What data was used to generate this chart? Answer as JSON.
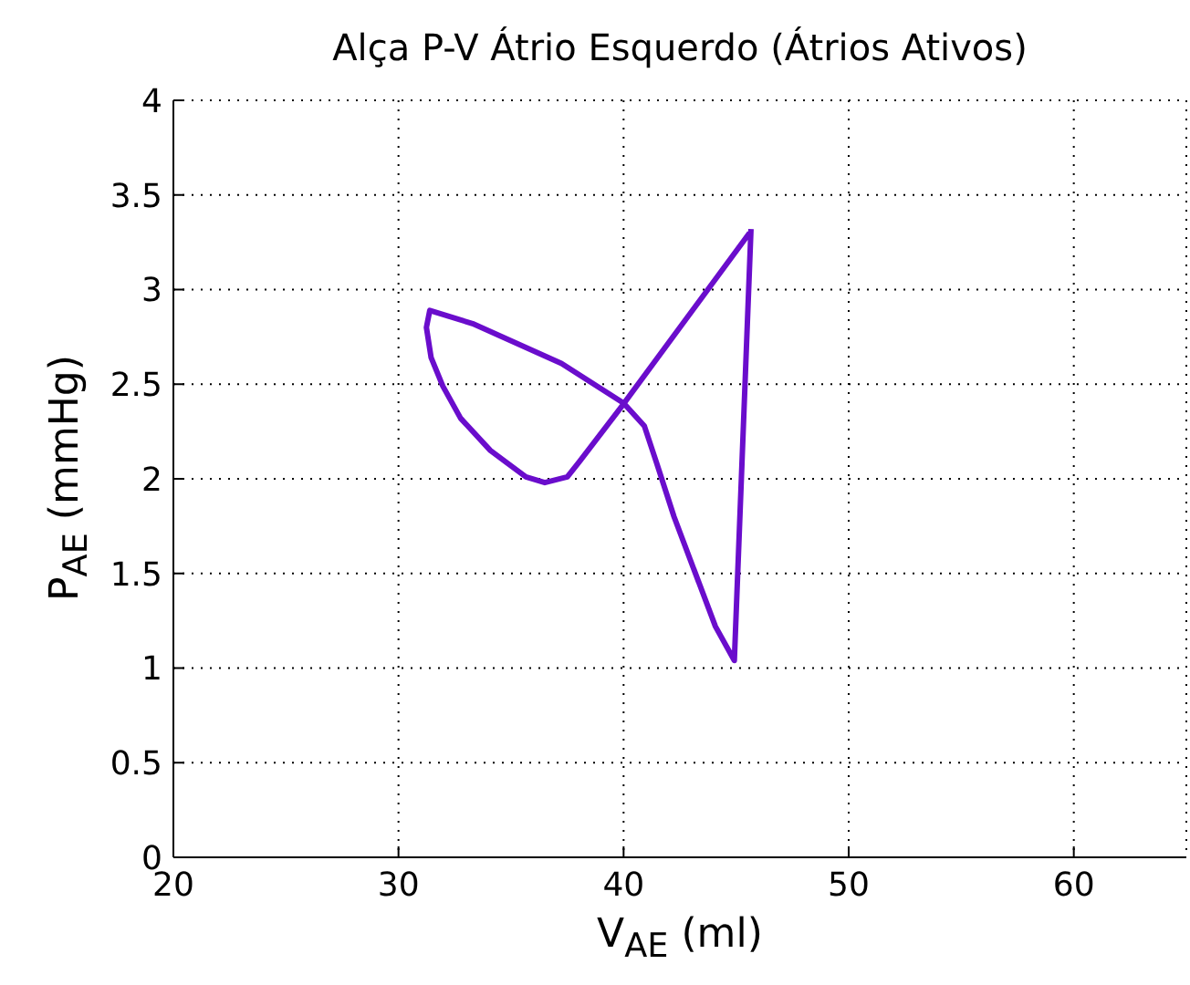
{
  "chart_data": {
    "type": "line",
    "title": "Alça P-V Átrio Esquerdo (Átrios Ativos)",
    "xlabel": "V$_{AE}$ (ml)",
    "ylabel": "P$_{AE}$ (mmHg)",
    "series": [
      {
        "color": "#6a0dcc",
        "x": [
          45.66,
          44.92,
          44.08,
          42.24,
          41.45,
          40.92,
          40.0,
          37.24,
          33.29,
          31.39,
          31.24,
          31.45,
          31.97,
          32.76,
          34.08,
          35.66,
          36.5,
          37.5,
          38.03,
          39.9,
          45.6
        ],
        "values": [
          3.32,
          1.04,
          1.22,
          1.8,
          2.09,
          2.28,
          2.4,
          2.61,
          2.82,
          2.89,
          2.8,
          2.64,
          2.49,
          2.32,
          2.15,
          2.01,
          1.98,
          2.01,
          2.09,
          2.38,
          3.3
        ]
      }
    ],
    "xlim": [
      20,
      65
    ],
    "xticks": [
      20,
      30,
      40,
      50,
      60
    ],
    "ylim": [
      0,
      4
    ],
    "yticks": [
      0,
      0.5,
      1,
      1.5,
      2,
      2.5,
      3,
      3.5,
      4
    ],
    "grid": true,
    "marker": "none",
    "line_style": "solid"
  }
}
